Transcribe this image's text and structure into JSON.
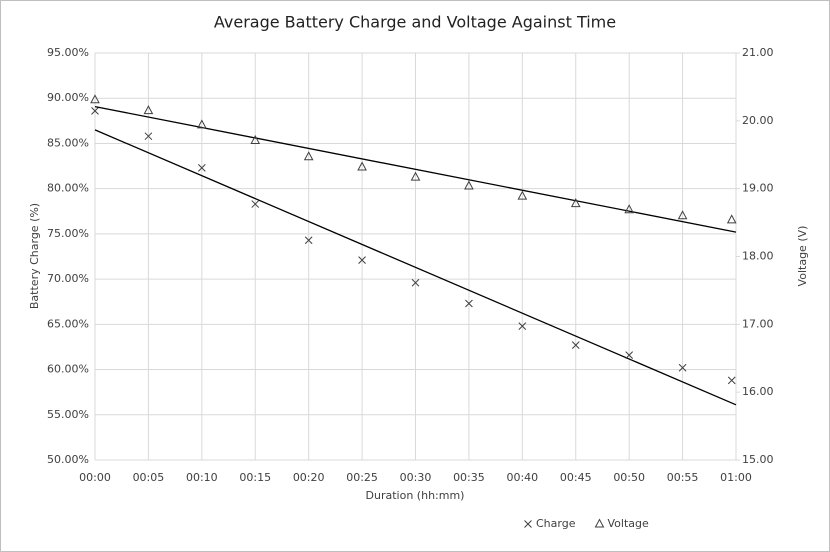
{
  "chart_data": {
    "type": "scatter",
    "title": "Average Battery Charge and Voltage Against Time",
    "x_label": "Duration (hh:mm)",
    "y_label": "Battery Charge (%)",
    "y2_label": "Voltage (V)",
    "x": [
      0,
      5,
      10,
      15,
      20,
      25,
      30,
      35,
      40,
      45,
      50,
      55,
      59.6
    ],
    "series": [
      {
        "name": "Charge",
        "marker": "x",
        "color": "#404040",
        "values": [
          88.6,
          85.8,
          82.3,
          78.3,
          74.3,
          72.1,
          69.6,
          67.3,
          64.8,
          62.7,
          61.6,
          60.2,
          58.8
        ],
        "trendline": [
          86.5,
          56.1
        ]
      },
      {
        "name": "Voltage",
        "marker": "triangle",
        "color": "#404040",
        "axis": "y2",
        "values": [
          20.31,
          20.15,
          19.94,
          19.71,
          19.47,
          19.32,
          19.17,
          19.04,
          18.89,
          18.78,
          18.69,
          18.6,
          18.54
        ],
        "trendline": [
          20.21,
          18.36
        ]
      }
    ],
    "xlim": [
      0,
      60
    ],
    "xticks": [
      {
        "value": 0,
        "label": "00:00"
      },
      {
        "value": 5,
        "label": "00:05"
      },
      {
        "value": 10,
        "label": "00:10"
      },
      {
        "value": 15,
        "label": "00:15"
      },
      {
        "value": 20,
        "label": "00:20"
      },
      {
        "value": 25,
        "label": "00:25"
      },
      {
        "value": 30,
        "label": "00:30"
      },
      {
        "value": 35,
        "label": "00:35"
      },
      {
        "value": 40,
        "label": "00:40"
      },
      {
        "value": 45,
        "label": "00:45"
      },
      {
        "value": 50,
        "label": "00:50"
      },
      {
        "value": 55,
        "label": "00:55"
      },
      {
        "value": 60,
        "label": "01:00"
      }
    ],
    "ylim": [
      50,
      95
    ],
    "yticks": [
      {
        "value": 50,
        "label": "50.00%"
      },
      {
        "value": 55,
        "label": "55.00%"
      },
      {
        "value": 60,
        "label": "60.00%"
      },
      {
        "value": 65,
        "label": "65.00%"
      },
      {
        "value": 70,
        "label": "70.00%"
      },
      {
        "value": 75,
        "label": "75.00%"
      },
      {
        "value": 80,
        "label": "80.00%"
      },
      {
        "value": 85,
        "label": "85.00%"
      },
      {
        "value": 90,
        "label": "90.00%"
      },
      {
        "value": 95,
        "label": "95.00%"
      }
    ],
    "y2lim": [
      15,
      21
    ],
    "y2ticks": [
      {
        "value": 15,
        "label": "15.00"
      },
      {
        "value": 16,
        "label": "16.00"
      },
      {
        "value": 17,
        "label": "17.00"
      },
      {
        "value": 18,
        "label": "18.00"
      },
      {
        "value": 19,
        "label": "19.00"
      },
      {
        "value": 20,
        "label": "20.00"
      },
      {
        "value": 21,
        "label": "21.00"
      }
    ],
    "grid": true,
    "legend": "bottom"
  }
}
